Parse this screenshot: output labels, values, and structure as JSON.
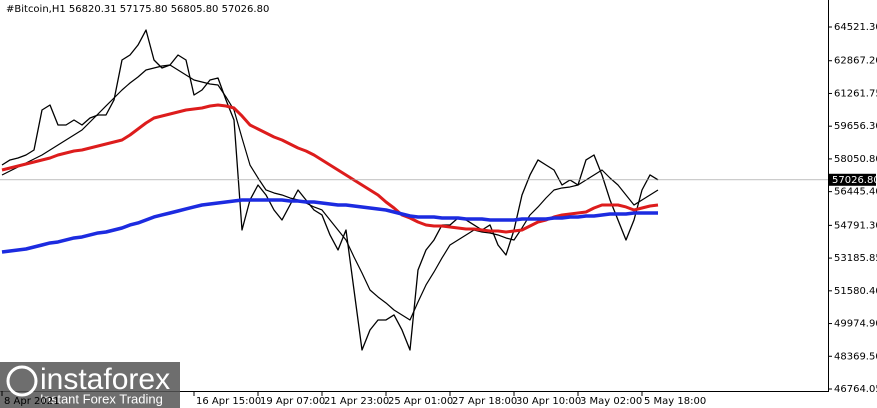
{
  "chart_data": {
    "type": "line",
    "title": "#Bitcoin,H1  56820.31 57175.80 56805.80 57026.80",
    "watermark": [
      "instaforex",
      "Instant Forex Trading"
    ],
    "categories": [
      "8 Apr 2021",
      null,
      null,
      null,
      null,
      null,
      null,
      null,
      null,
      null,
      null,
      null,
      null,
      null,
      null,
      null,
      null,
      null,
      null,
      null,
      null,
      null,
      null,
      null,
      "16 Apr 15:00",
      null,
      null,
      null,
      null,
      null,
      null,
      null,
      "19 Apr 07:00",
      null,
      null,
      null,
      null,
      null,
      null,
      null,
      "21 Apr 23:00",
      null,
      null,
      null,
      null,
      null,
      null,
      null,
      "25 Apr 01:00",
      null,
      null,
      null,
      null,
      null,
      null,
      null,
      "27 Apr 18:00",
      null,
      null,
      null,
      null,
      null,
      null,
      null,
      "30 Apr 10:00",
      null,
      null,
      null,
      null,
      null,
      null,
      null,
      "3 May 02:00",
      null,
      null,
      null,
      null,
      null,
      null,
      null,
      "5 May 18:00",
      null,
      null
    ],
    "series": [
      {
        "color": "#000000",
        "values": [
          57752,
          57998,
          58096,
          58243,
          58488,
          60450,
          60695,
          59714,
          59714,
          59960,
          59714,
          60058,
          60205,
          60205,
          60941,
          62903,
          63148,
          63638,
          64374,
          62903,
          62510,
          62657,
          63148,
          62903,
          61186,
          61431,
          61922,
          62020,
          60941,
          59960,
          54564,
          56036,
          56771,
          56281,
          55545,
          55055,
          55790,
          56526,
          56036,
          55545,
          55300,
          54319,
          53583,
          54564,
          51621,
          48678,
          49659,
          50150,
          50150,
          50395,
          49659,
          48678,
          52602,
          53583,
          54074,
          54810,
          54810,
          55153,
          55055,
          54810,
          54564,
          54810,
          53828,
          53338,
          54564,
          56281,
          57262,
          57998,
          57752,
          57507,
          56771,
          57017,
          56771,
          57998,
          58243,
          57262,
          56036,
          55055,
          54074,
          55055,
          56526,
          57262,
          57027
        ]
      },
      {
        "color": "#000000",
        "values": [
          57262,
          57458,
          57655,
          57851,
          58047,
          58243,
          58488,
          58734,
          58979,
          59224,
          59469,
          59862,
          60254,
          60647,
          61039,
          61431,
          61775,
          62069,
          62412,
          62510,
          62608,
          62657,
          62412,
          62167,
          61922,
          61824,
          61726,
          61676,
          61088,
          60450,
          59077,
          57752,
          57115,
          56526,
          56379,
          56281,
          56134,
          56036,
          55889,
          55693,
          55545,
          55055,
          54564,
          54074,
          53240,
          52455,
          51621,
          51278,
          50984,
          50640,
          50395,
          50150,
          51033,
          51867,
          52504,
          53191,
          53828,
          54074,
          54319,
          54564,
          54466,
          54417,
          54319,
          54172,
          54074,
          54662,
          55300,
          55693,
          56134,
          56526,
          56625,
          56674,
          56771,
          57017,
          57262,
          57507,
          57115,
          56771,
          56281,
          55790,
          56036,
          56281,
          56526
        ]
      },
      {
        "color": "#dd1c1c",
        "values": [
          57507,
          57605,
          57703,
          57801,
          57899,
          57998,
          58096,
          58243,
          58341,
          58439,
          58488,
          58586,
          58684,
          58782,
          58880,
          58979,
          59224,
          59518,
          59812,
          60058,
          60156,
          60254,
          60352,
          60450,
          60499,
          60548,
          60647,
          60695,
          60647,
          60548,
          60156,
          59714,
          59518,
          59322,
          59126,
          58979,
          58782,
          58586,
          58439,
          58243,
          57998,
          57752,
          57507,
          57262,
          57017,
          56771,
          56526,
          56281,
          55937,
          55643,
          55300,
          55153,
          54956,
          54810,
          54760,
          54760,
          54711,
          54662,
          54613,
          54613,
          54564,
          54515,
          54515,
          54466,
          54515,
          54564,
          54760,
          54956,
          55055,
          55202,
          55300,
          55349,
          55398,
          55447,
          55643,
          55790,
          55790,
          55790,
          55693,
          55545,
          55643,
          55741,
          55790
        ]
      },
      {
        "color": "#1c2be0",
        "values": [
          53485,
          53534,
          53583,
          53632,
          53730,
          53828,
          53927,
          53976,
          54074,
          54172,
          54221,
          54319,
          54417,
          54466,
          54564,
          54662,
          54810,
          54908,
          55055,
          55202,
          55300,
          55398,
          55496,
          55595,
          55693,
          55790,
          55840,
          55889,
          55938,
          55987,
          56036,
          56036,
          56036,
          56036,
          56036,
          56036,
          55987,
          55987,
          55938,
          55938,
          55889,
          55840,
          55790,
          55790,
          55742,
          55693,
          55643,
          55595,
          55545,
          55447,
          55349,
          55251,
          55202,
          55202,
          55202,
          55153,
          55153,
          55153,
          55104,
          55104,
          55104,
          55055,
          55055,
          55055,
          55055,
          55104,
          55104,
          55104,
          55104,
          55153,
          55153,
          55202,
          55202,
          55251,
          55251,
          55300,
          55349,
          55349,
          55349,
          55398,
          55398,
          55398,
          55398
        ]
      }
    ],
    "last_price": {
      "value": 57026.8,
      "label": "57026.80"
    },
    "ylim": [
      46666,
      65846
    ],
    "yticks": [
      {
        "value": 64521.3,
        "label": "64521.30"
      },
      {
        "value": 62867.2,
        "label": "62867.20"
      },
      {
        "value": 61261.75,
        "label": "61261.75"
      },
      {
        "value": 59656.3,
        "label": "59656.30"
      },
      {
        "value": 58050.8,
        "label": "58050.80"
      },
      {
        "value": 56445.4,
        "label": "56445.40"
      },
      {
        "value": 54791.3,
        "label": "54791.30"
      },
      {
        "value": 53185.85,
        "label": "53185.85"
      },
      {
        "value": 51580.4,
        "label": "51580.40"
      },
      {
        "value": 49974.9,
        "label": "49974.90"
      },
      {
        "value": 48369.5,
        "label": "48369.50"
      },
      {
        "value": 46764.05,
        "label": "46764.05"
      }
    ],
    "grid": false
  }
}
